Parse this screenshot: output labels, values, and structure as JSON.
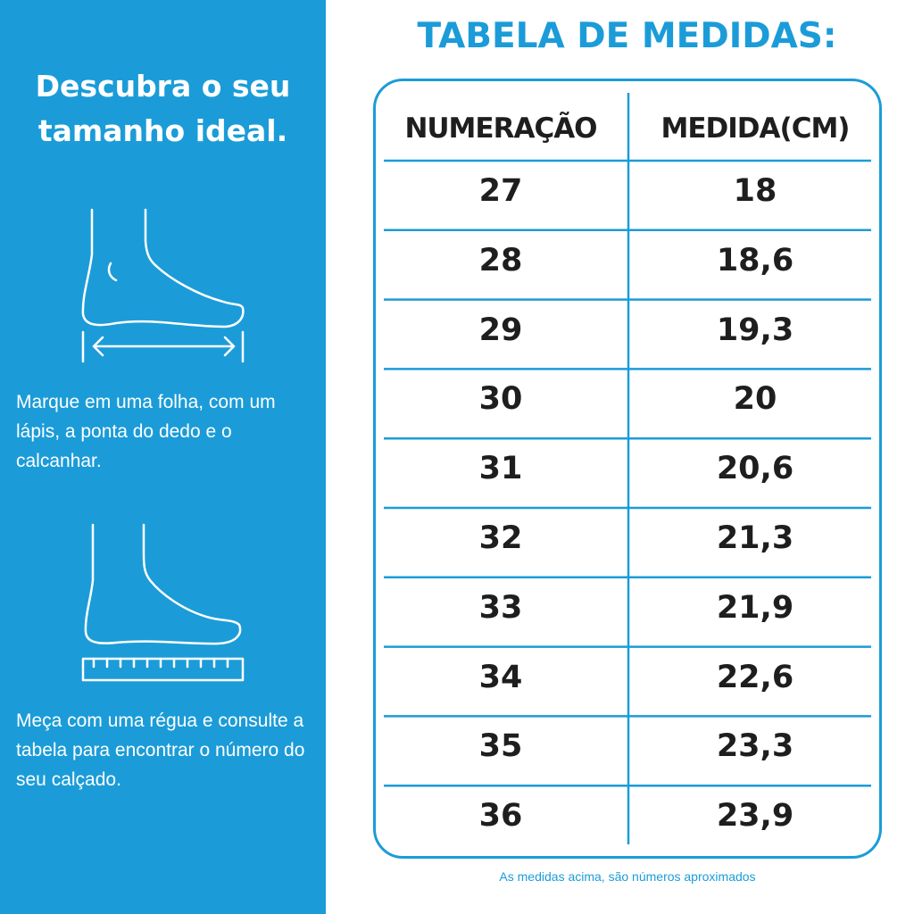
{
  "panel": {
    "heading": [
      "Descubra o seu",
      "tamanho ideal."
    ],
    "steps": [
      "Marque em uma folha, com um lápis, a ponta do dedo e o calcanhar.",
      "Meça com uma régua e consulte a tabela para encontrar o número do seu calçado."
    ]
  },
  "title": "TABELA DE MEDIDAS:",
  "table": {
    "header": [
      "NUMERAÇÃO",
      "MEDIDA(CM)"
    ],
    "rows": [
      [
        "27",
        "18"
      ],
      [
        "28",
        "18,6"
      ],
      [
        "29",
        "19,3"
      ],
      [
        "30",
        "20"
      ],
      [
        "31",
        "20,6"
      ],
      [
        "32",
        "21,3"
      ],
      [
        "33",
        "21,9"
      ],
      [
        "34",
        "22,6"
      ],
      [
        "35",
        "23,3"
      ],
      [
        "36",
        "23,9"
      ]
    ]
  },
  "footnote": "As medidas acima, são números aproximados"
}
